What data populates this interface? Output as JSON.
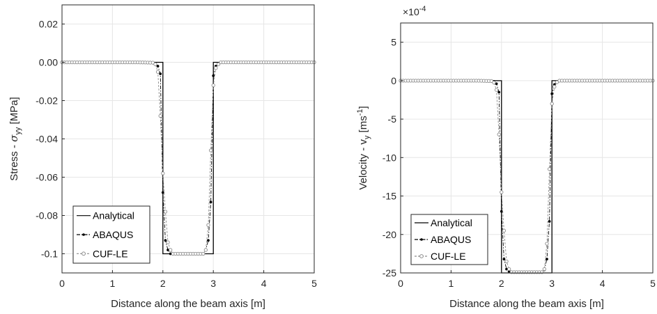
{
  "chart_data": [
    {
      "type": "line",
      "xlabel": "Distance along the beam axis [m]",
      "ylabel": "Stress - σ_yy [MPa]",
      "ylabel_parts": {
        "base": "Stress - ",
        "symbol": "σ",
        "sub": "yy",
        "unit": " [MPa]"
      },
      "xlim": [
        0,
        5
      ],
      "ylim": [
        -0.11,
        0.03
      ],
      "xticks": [
        0,
        1,
        2,
        3,
        4,
        5
      ],
      "xtick_labels": [
        "0",
        "1",
        "2",
        "3",
        "4",
        "5"
      ],
      "yticks": [
        -0.1,
        -0.08,
        -0.06,
        -0.04,
        -0.02,
        0.0,
        0.02
      ],
      "ytick_labels": [
        "-0.1",
        "-0.08",
        "-0.06",
        "-0.04",
        "-0.02",
        "0.00",
        "0.02"
      ],
      "grid": true,
      "legend_position": "bottom-left",
      "series": [
        {
          "name": "Analytical",
          "style": "solid",
          "color": "#000000",
          "marker": "none",
          "x": [
            0,
            2.0,
            2.0,
            3.0,
            3.0,
            5
          ],
          "y": [
            0,
            0,
            -0.1,
            -0.1,
            0,
            0
          ]
        },
        {
          "name": "ABAQUS",
          "style": "dashdot",
          "color": "#000000",
          "marker": "filled-dot",
          "x": [
            0,
            1.5,
            1.85,
            1.9,
            1.95,
            2.0,
            2.05,
            2.1,
            2.15,
            2.2,
            2.4,
            2.6,
            2.8,
            2.85,
            2.9,
            2.95,
            3.0,
            3.05,
            3.1,
            3.15,
            3.5,
            5
          ],
          "y": [
            0,
            0,
            -0.0005,
            -0.002,
            -0.006,
            -0.068,
            -0.093,
            -0.098,
            -0.1,
            -0.1,
            -0.1,
            -0.1,
            -0.1,
            -0.098,
            -0.093,
            -0.073,
            -0.007,
            -0.002,
            -0.0005,
            0,
            0,
            0
          ]
        },
        {
          "name": "CUF-LE",
          "style": "dashed",
          "color": "#8c8c8c",
          "marker": "open-circle",
          "x": [
            0,
            1.5,
            1.8,
            1.85,
            1.9,
            1.95,
            2.0,
            2.05,
            2.1,
            2.15,
            2.2,
            2.4,
            2.6,
            2.8,
            2.85,
            2.9,
            2.95,
            3.0,
            3.05,
            3.1,
            3.15,
            3.5,
            5
          ],
          "y": [
            0,
            0,
            -0.0002,
            -0.001,
            -0.005,
            -0.028,
            -0.058,
            -0.078,
            -0.094,
            -0.098,
            -0.1,
            -0.1,
            -0.1,
            -0.1,
            -0.098,
            -0.085,
            -0.046,
            -0.012,
            -0.003,
            -0.001,
            0,
            0,
            0
          ]
        }
      ]
    },
    {
      "type": "line",
      "xlabel": "Distance along the beam axis [m]",
      "ylabel": "Velocity - v_y [ms^-1]",
      "ylabel_parts": {
        "base": "Velocity - v",
        "sub": "y",
        "unit_base": " [ms",
        "sup": "-1",
        "unit_end": "]"
      },
      "scale_factor": "×10^-4",
      "scale_factor_parts": {
        "base": "×10",
        "sup": "-4"
      },
      "xlim": [
        0,
        5
      ],
      "ylim": [
        -25,
        7.5
      ],
      "xticks": [
        0,
        1,
        2,
        3,
        4,
        5
      ],
      "xtick_labels": [
        "0",
        "1",
        "2",
        "3",
        "4",
        "5"
      ],
      "yticks": [
        -25,
        -20,
        -15,
        -10,
        -5,
        0,
        5
      ],
      "ytick_labels": [
        "-25",
        "-20",
        "-15",
        "-10",
        "-5",
        "0",
        "5"
      ],
      "grid": true,
      "legend_position": "bottom-left",
      "series": [
        {
          "name": "Analytical",
          "style": "solid",
          "color": "#000000",
          "marker": "none",
          "x": [
            0,
            2.0,
            2.0,
            3.0,
            3.0,
            5
          ],
          "y": [
            0,
            0,
            -25,
            -25,
            0,
            0
          ]
        },
        {
          "name": "ABAQUS",
          "style": "dashdot",
          "color": "#000000",
          "marker": "filled-dot",
          "x": [
            0,
            1.5,
            1.85,
            1.9,
            1.95,
            2.0,
            2.05,
            2.1,
            2.15,
            2.2,
            2.4,
            2.6,
            2.8,
            2.85,
            2.9,
            2.95,
            3.0,
            3.05,
            3.1,
            3.15,
            3.5,
            5
          ],
          "y": [
            0,
            0,
            -0.1,
            -0.4,
            -1.5,
            -17,
            -23.2,
            -24.5,
            -24.8,
            -24.9,
            -24.9,
            -24.9,
            -24.9,
            -24.6,
            -23.2,
            -18.3,
            -1.7,
            -0.5,
            -0.1,
            0,
            0,
            0
          ]
        },
        {
          "name": "CUF-LE",
          "style": "dashed",
          "color": "#8c8c8c",
          "marker": "open-circle",
          "x": [
            0,
            1.5,
            1.8,
            1.85,
            1.9,
            1.95,
            2.0,
            2.05,
            2.1,
            2.15,
            2.2,
            2.4,
            2.6,
            2.8,
            2.85,
            2.9,
            2.95,
            3.0,
            3.05,
            3.1,
            3.15,
            3.5,
            5
          ],
          "y": [
            0,
            0,
            -0.05,
            -0.25,
            -1.2,
            -7,
            -14.5,
            -19.5,
            -23.5,
            -24.5,
            -24.9,
            -24.9,
            -24.9,
            -24.9,
            -24.5,
            -21.2,
            -11.5,
            -3,
            -0.8,
            -0.2,
            0,
            0,
            0
          ]
        }
      ]
    }
  ]
}
